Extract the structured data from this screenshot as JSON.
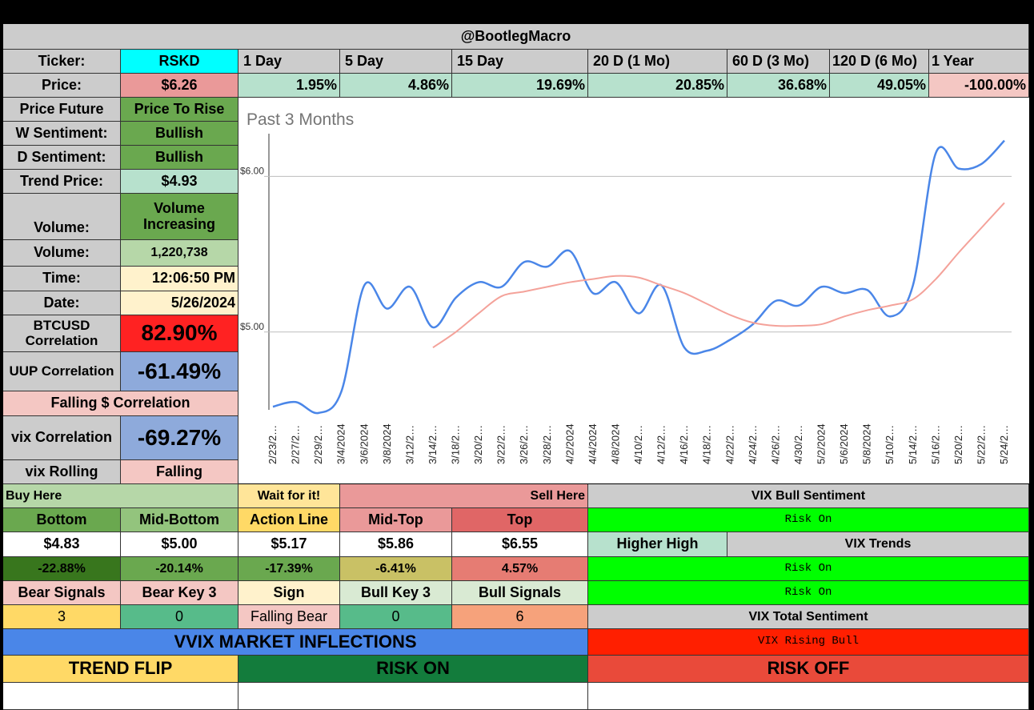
{
  "header": {
    "title": "@BootlegMacro"
  },
  "ticker": {
    "label": "Ticker:",
    "value": "RSKD"
  },
  "price": {
    "label": "Price:",
    "value": "$6.26"
  },
  "periods": [
    {
      "label": "1 Day",
      "change": "1.95%"
    },
    {
      "label": "5 Day",
      "change": "4.86%"
    },
    {
      "label": "15 Day",
      "change": "19.69%"
    },
    {
      "label": "20 D (1 Mo)",
      "change": "20.85%"
    },
    {
      "label": "60 D (3 Mo)",
      "change": "36.68%"
    },
    {
      "label": "120 D (6 Mo)",
      "change": "49.05%"
    },
    {
      "label": "1 Year",
      "change": "-100.00%"
    }
  ],
  "stats": {
    "price_future": {
      "label": "Price Future",
      "value": "Price To Rise"
    },
    "w_sentiment": {
      "label": "W Sentiment:",
      "value": "Bullish"
    },
    "d_sentiment": {
      "label": "D Sentiment:",
      "value": "Bullish"
    },
    "trend_price": {
      "label": "Trend Price:",
      "value": "$4.93"
    },
    "volume_trend": {
      "label": "Volume:",
      "value": "Volume Increasing"
    },
    "volume": {
      "label": "Volume:",
      "value": "1,220,738"
    },
    "time": {
      "label": "Time:",
      "value": "12:06:50 PM"
    },
    "date": {
      "label": "Date:",
      "value": "5/26/2024"
    },
    "btc_corr": {
      "label": "BTCUSD Correlation",
      "value": "82.90%"
    },
    "uup_corr": {
      "label": "UUP Correlation",
      "value": "-61.49%"
    },
    "falling_corr": {
      "label": "Falling $ Correlation"
    },
    "vix_corr": {
      "label": "vix Correlation",
      "value": "-69.27%"
    },
    "vix_rolling": {
      "label": "vix Rolling",
      "value": "Falling"
    }
  },
  "levels": {
    "buy_here": "Buy Here",
    "wait": "Wait for it!",
    "sell_here": "Sell Here",
    "headers": [
      "Bottom",
      "Mid-Bottom",
      "Action Line",
      "Mid-Top",
      "Top"
    ],
    "prices": [
      "$4.83",
      "$5.00",
      "$5.17",
      "$5.86",
      "$6.55"
    ],
    "pcts": [
      "-22.88%",
      "-20.14%",
      "-17.39%",
      "-6.41%",
      "4.57%"
    ]
  },
  "signals": {
    "headers": [
      "Bear Signals",
      "Bear Key 3",
      "Sign",
      "Bull Key 3",
      "Bull Signals"
    ],
    "values": [
      "3",
      "0",
      "Falling Bear",
      "0",
      "6"
    ]
  },
  "vix": {
    "bull_sentiment": "VIX Bull Sentiment",
    "risk_on_1": "Risk On",
    "higher_high": "Higher High",
    "trends": "VIX Trends",
    "risk_on_2": "Risk On",
    "risk_on_3": "Risk On",
    "total_sentiment": "VIX Total Sentiment",
    "rising_bull": "VIX Rising Bull"
  },
  "inflections": {
    "title": "VVIX MARKET INFLECTIONS",
    "trend_flip": "TREND FLIP",
    "risk_on": "RISK ON",
    "risk_off": "RISK OFF"
  },
  "colors": {
    "header_gray": "#cccccc",
    "cyan": "#00ffff",
    "light_green": "#b7e1cd",
    "light_red": "#f4c7c3",
    "green": "#6aa84f",
    "red": "#ff2222",
    "blue_light": "#8eaadb",
    "bright_green": "#00ff00",
    "vvix_blue": "#4a86e8",
    "price_line": "#4a86e8",
    "trend_line": "#f4a29a"
  },
  "chart_data": {
    "type": "line",
    "title": "Past 3 Months",
    "y_tick_labels": [
      "$6.00",
      "$5.00"
    ],
    "ylim": [
      4.5,
      6.3
    ],
    "x": [
      "2/23/2…",
      "2/27/2…",
      "2/29/2…",
      "3/4/2024",
      "3/6/2024",
      "3/8/2024",
      "3/12/2…",
      "3/14/2…",
      "3/18/2…",
      "3/20/2…",
      "3/22/2…",
      "3/26/2…",
      "3/28/2…",
      "4/2/2024",
      "4/4/2024",
      "4/8/2024",
      "4/10/2…",
      "4/12/2…",
      "4/16/2…",
      "4/18/2…",
      "4/22/2…",
      "4/24/2…",
      "4/26/2…",
      "4/30/2…",
      "5/2/2024",
      "5/6/2024",
      "5/8/2024",
      "5/10/2…",
      "5/14/2…",
      "5/16/2…",
      "5/20/2…",
      "5/22/2…",
      "5/24/2…"
    ],
    "series": [
      {
        "values": [
          4.52,
          4.55,
          4.48,
          4.62,
          5.3,
          5.15,
          5.29,
          5.03,
          5.22,
          5.32,
          5.29,
          5.45,
          5.42,
          5.52,
          5.25,
          5.32,
          5.12,
          5.3,
          4.9,
          4.88,
          4.95,
          5.05,
          5.2,
          5.17,
          5.29,
          5.25,
          5.27,
          5.1,
          5.3,
          6.15,
          6.05,
          6.08,
          6.23
        ]
      },
      {
        "values": [
          null,
          null,
          null,
          null,
          null,
          null,
          null,
          4.9,
          5.0,
          5.12,
          5.23,
          5.26,
          5.29,
          5.32,
          5.34,
          5.36,
          5.35,
          5.3,
          5.25,
          5.18,
          5.11,
          5.06,
          5.04,
          5.04,
          5.05,
          5.1,
          5.14,
          5.17,
          5.21,
          5.34,
          5.51,
          5.67,
          5.83
        ]
      }
    ]
  }
}
